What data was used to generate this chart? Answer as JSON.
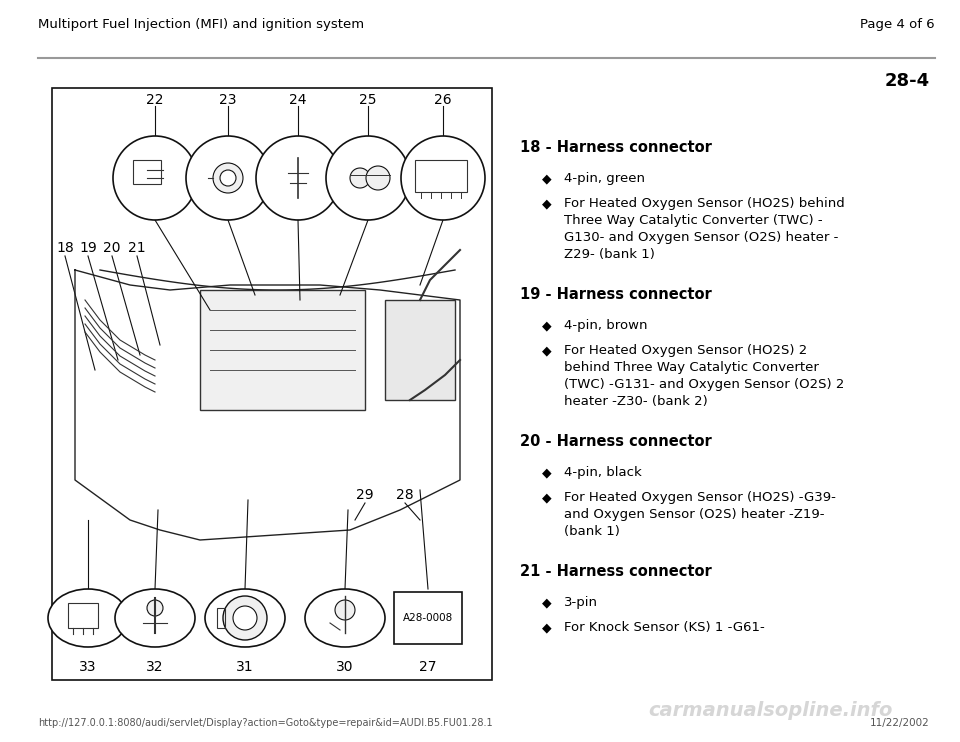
{
  "header_left": "Multiport Fuel Injection (MFI) and ignition system",
  "header_right": "Page 4 of 6",
  "page_number": "28-4",
  "footer_url": "http://127.0.0.1:8080/audi/servlet/Display?action=Goto&type=repair&id=AUDI.B5.FU01.28.1",
  "footer_date": "11/22/2002",
  "footer_logo": "carmanualsopline.info",
  "bg_color": "#ffffff",
  "header_line_color": "#999999",
  "text_color": "#000000",
  "items": [
    {
      "number": "18",
      "title": "Harness connector",
      "bullets": [
        "4-pin, green",
        "For Heated Oxygen Sensor (HO2S) behind\nThree Way Catalytic Converter (TWC) -\nG130- and Oxygen Sensor (O2S) heater -\nZ29- (bank 1)"
      ]
    },
    {
      "number": "19",
      "title": "Harness connector",
      "bullets": [
        "4-pin, brown",
        "For Heated Oxygen Sensor (HO2S) 2\nbehind Three Way Catalytic Converter\n(TWC) -G131- and Oxygen Sensor (O2S) 2\nheater -Z30- (bank 2)"
      ]
    },
    {
      "number": "20",
      "title": "Harness connector",
      "bullets": [
        "4-pin, black",
        "For Heated Oxygen Sensor (HO2S) -G39-\nand Oxygen Sensor (O2S) heater -Z19-\n(bank 1)"
      ]
    },
    {
      "number": "21",
      "title": "Harness connector",
      "bullets": [
        "3-pin",
        "For Knock Sensor (KS) 1 -G61-"
      ]
    }
  ],
  "diagram_labels_top": [
    "22",
    "23",
    "24",
    "25",
    "26"
  ],
  "diagram_labels_bottom_left": [
    "18",
    "19",
    "20",
    "21"
  ],
  "diagram_labels_bottom": [
    "33",
    "32",
    "31",
    "30",
    "27"
  ],
  "diagram_ref": "A28-0008"
}
